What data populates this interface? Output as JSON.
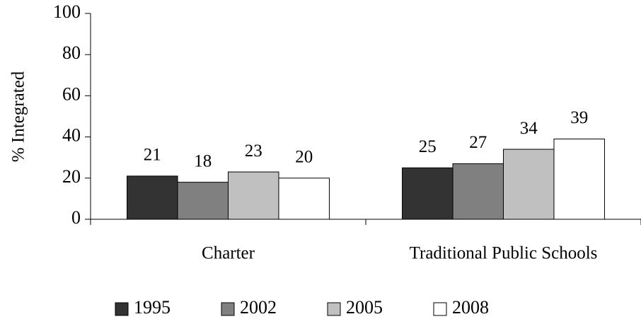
{
  "chart_data": {
    "type": "bar",
    "y_label": "% Integrated",
    "categories": [
      "Charter",
      "Traditional Public Schools"
    ],
    "series": [
      {
        "name": "1995",
        "color": "#333333",
        "values": [
          21,
          25
        ]
      },
      {
        "name": "2002",
        "color": "#808080",
        "values": [
          18,
          27
        ]
      },
      {
        "name": "2005",
        "color": "#c0c0c0",
        "values": [
          23,
          34
        ]
      },
      {
        "name": "2008",
        "color": "#ffffff",
        "values": [
          20,
          39
        ]
      }
    ],
    "ylim": [
      0,
      100
    ],
    "yticks": [
      0,
      20,
      40,
      60,
      80,
      100
    ],
    "grid": false,
    "legend": "bottom"
  }
}
